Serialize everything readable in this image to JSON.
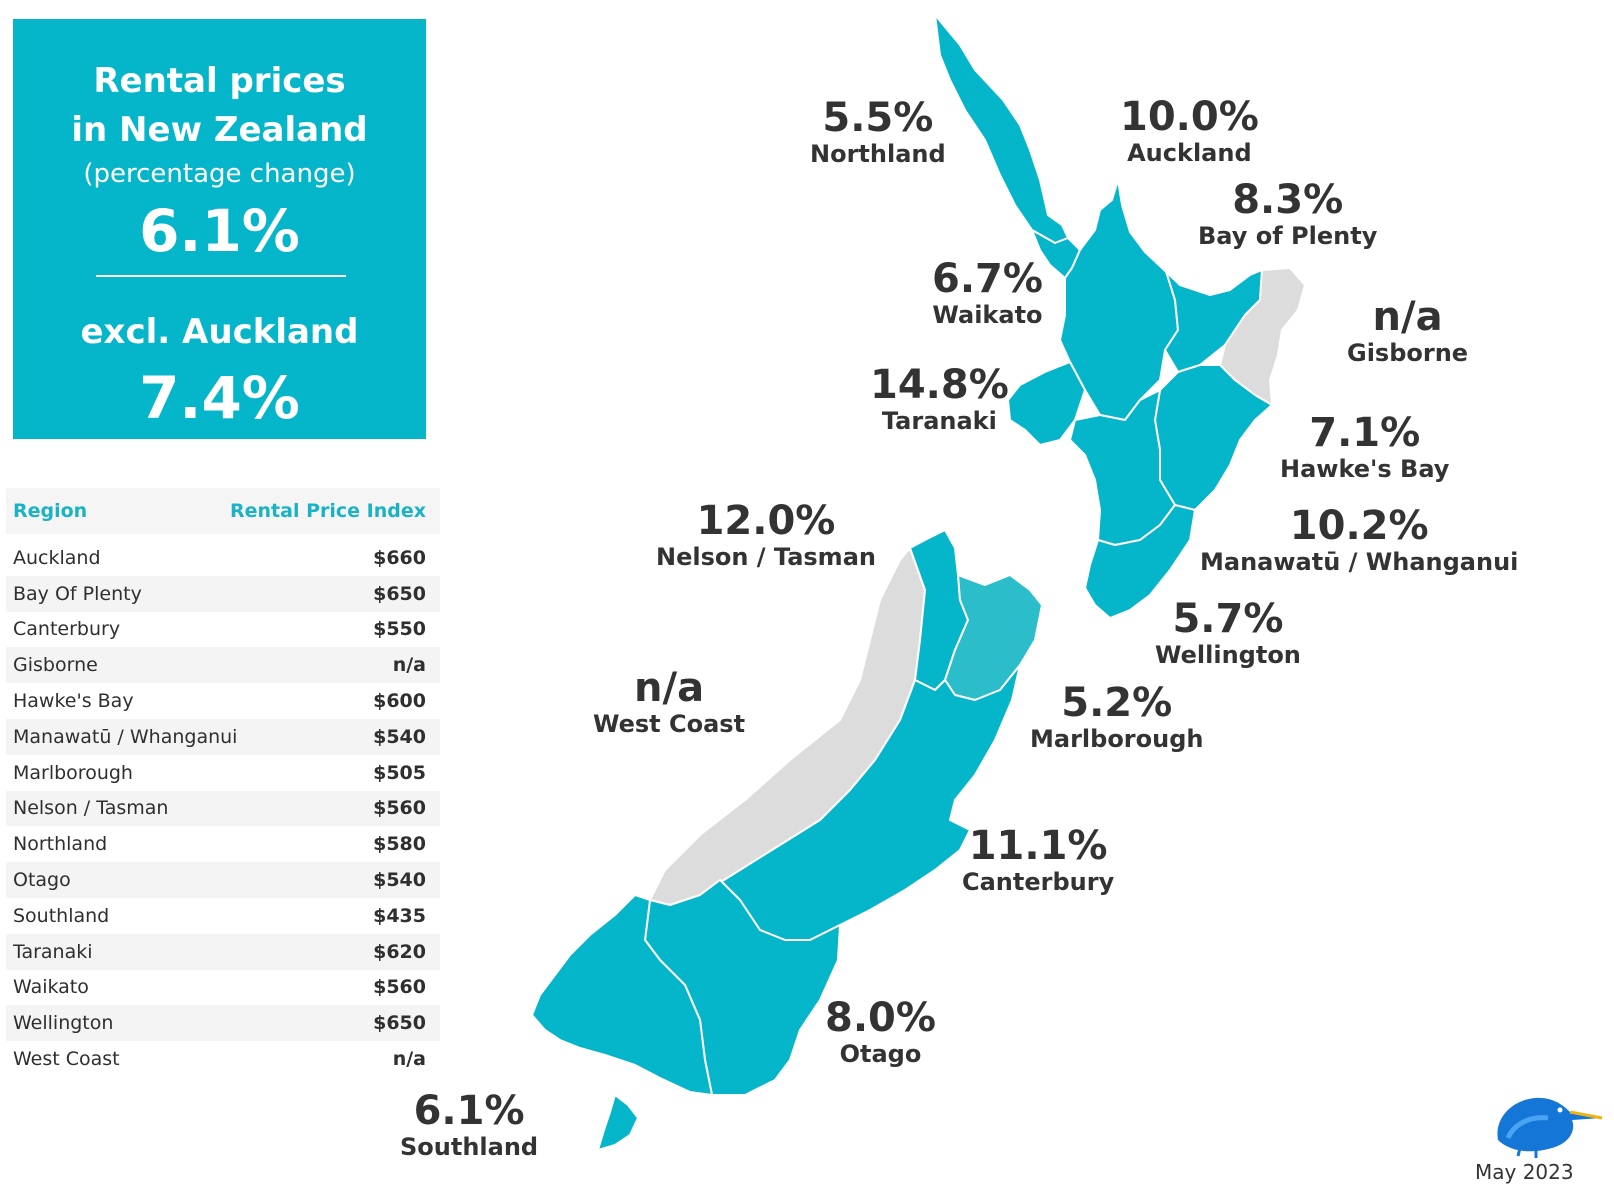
{
  "summary": {
    "title_line1": "Rental prices",
    "title_line2": "in New Zealand",
    "subtitle": "(percentage change)",
    "overall_change": "6.1%",
    "excl_label": "excl. Auckland",
    "excl_change": "7.4%"
  },
  "table": {
    "col_region": "Region",
    "col_index": "Rental Price Index",
    "rows": [
      {
        "region": "Auckland",
        "value": "$660"
      },
      {
        "region": "Bay Of Plenty",
        "value": "$650"
      },
      {
        "region": "Canterbury",
        "value": "$550"
      },
      {
        "region": "Gisborne",
        "value": "n/a"
      },
      {
        "region": "Hawke's Bay",
        "value": "$600"
      },
      {
        "region": "Manawatū / Whanganui",
        "value": "$540"
      },
      {
        "region": "Marlborough",
        "value": "$505"
      },
      {
        "region": "Nelson / Tasman",
        "value": "$560"
      },
      {
        "region": "Northland",
        "value": "$580"
      },
      {
        "region": "Otago",
        "value": "$540"
      },
      {
        "region": "Southland",
        "value": "$435"
      },
      {
        "region": "Taranaki",
        "value": "$620"
      },
      {
        "region": "Waikato",
        "value": "$560"
      },
      {
        "region": "Wellington",
        "value": "$650"
      },
      {
        "region": "West Coast",
        "value": "n/a"
      }
    ]
  },
  "map_labels": {
    "northland": {
      "pct": "5.5%",
      "name": "Northland"
    },
    "auckland": {
      "pct": "10.0%",
      "name": "Auckland"
    },
    "bay_of_plenty": {
      "pct": "8.3%",
      "name": "Bay of Plenty"
    },
    "waikato": {
      "pct": "6.7%",
      "name": "Waikato"
    },
    "gisborne": {
      "pct": "n/a",
      "name": "Gisborne"
    },
    "taranaki": {
      "pct": "14.8%",
      "name": "Taranaki"
    },
    "hawkes_bay": {
      "pct": "7.1%",
      "name": "Hawke's Bay"
    },
    "nelson_tasman": {
      "pct": "12.0%",
      "name": "Nelson / Tasman"
    },
    "manawatu": {
      "pct": "10.2%",
      "name": "Manawatū / Whanganui"
    },
    "wellington": {
      "pct": "5.7%",
      "name": "Wellington"
    },
    "west_coast": {
      "pct": "n/a",
      "name": "West Coast"
    },
    "marlborough": {
      "pct": "5.2%",
      "name": "Marlborough"
    },
    "canterbury": {
      "pct": "11.1%",
      "name": "Canterbury"
    },
    "otago": {
      "pct": "8.0%",
      "name": "Otago"
    },
    "southland": {
      "pct": "6.1%",
      "name": "Southland"
    }
  },
  "colors": {
    "teal": "#05b5c9",
    "grey": "#dcdcdc",
    "text": "#333333",
    "header": "#1bb2c6"
  },
  "footer": {
    "date": "May 2023"
  }
}
